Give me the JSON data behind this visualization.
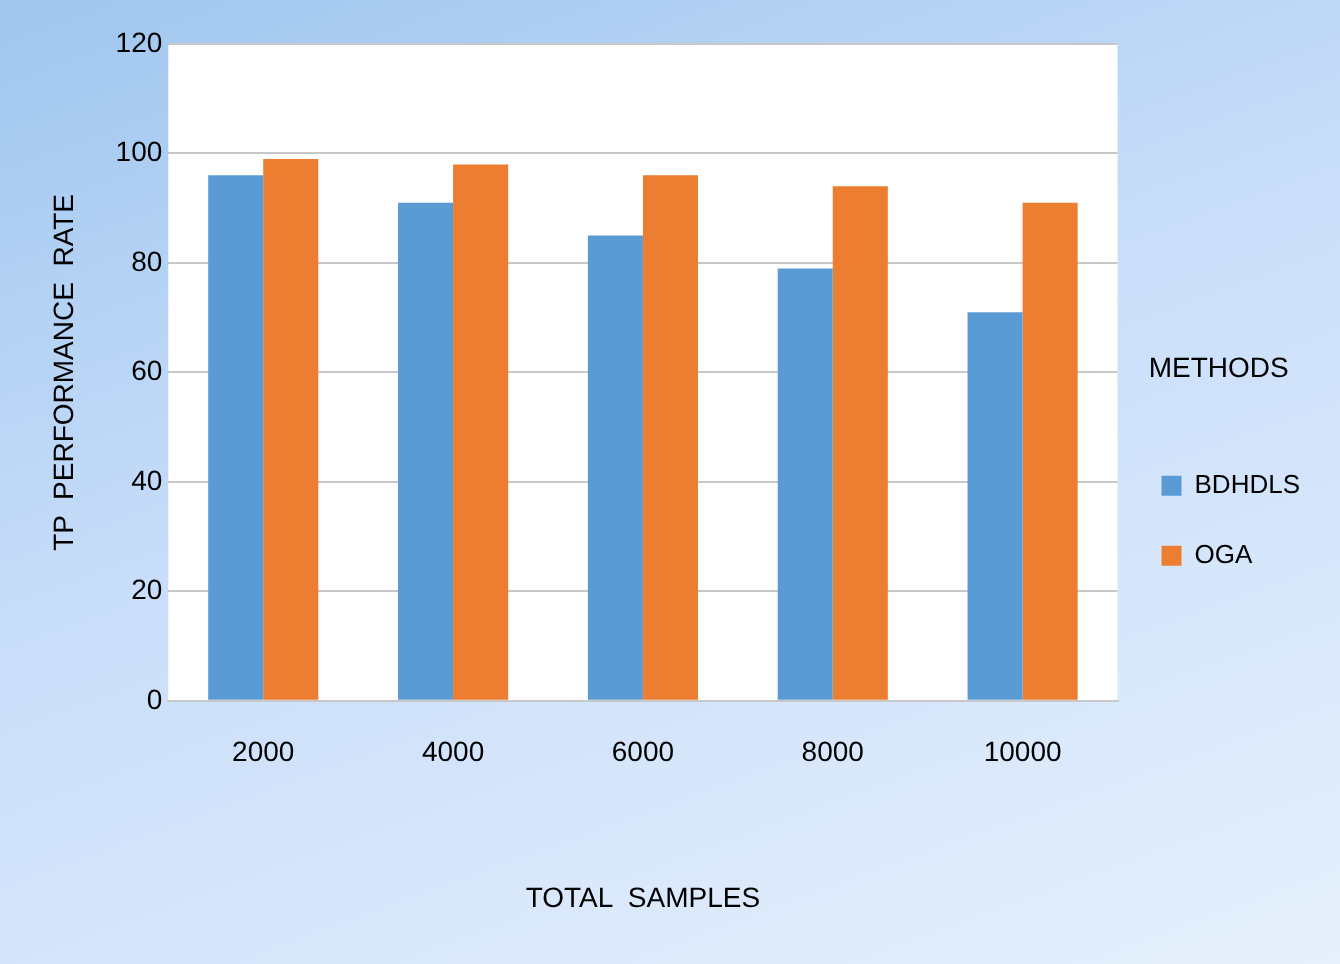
{
  "chart_data": {
    "type": "bar",
    "xlabel": "TOTAL  SAMPLES",
    "ylabel": "TP  PERFORMANCE  RATE",
    "legend_title": "METHODS",
    "categories": [
      "2000",
      "4000",
      "6000",
      "8000",
      "10000"
    ],
    "series": [
      {
        "name": "BDHDLS",
        "color": "#5b9bd5",
        "values": [
          96,
          91,
          85,
          79,
          71
        ]
      },
      {
        "name": "OGA",
        "color": "#ed7d31",
        "values": [
          99,
          98,
          96,
          94,
          91
        ]
      }
    ],
    "ylim": [
      0,
      120
    ],
    "yticks": [
      0,
      20,
      40,
      60,
      80,
      100,
      120
    ],
    "grid": "y",
    "legend": "right"
  }
}
